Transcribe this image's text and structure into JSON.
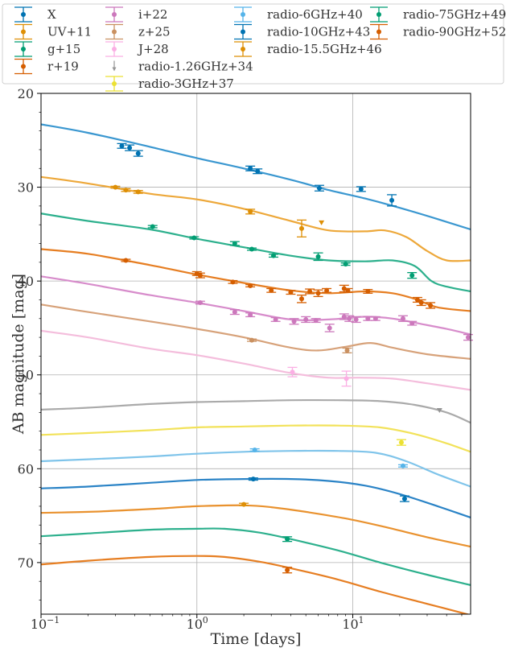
{
  "chart_data": {
    "type": "scatter",
    "xlabel": "Time [days]",
    "ylabel": "AB magnitude [mag]",
    "xscale": "log",
    "xlim": [
      0.1,
      57
    ],
    "ylim": [
      75.5,
      20
    ],
    "y_inverted": true,
    "grid": true,
    "legend_position": "top",
    "xticks": [
      {
        "v": 0.1,
        "base": "10",
        "exp": "−1"
      },
      {
        "v": 1,
        "base": "10",
        "exp": "0"
      },
      {
        "v": 10,
        "base": "10",
        "exp": "1"
      }
    ],
    "yticks": [
      20,
      30,
      40,
      50,
      60,
      70
    ],
    "series": [
      {
        "name": "X",
        "color": "#0173b2",
        "model_color": "#3a97d0",
        "upper_limit": false,
        "points": [
          [
            0.33,
            25.6,
            0.25
          ],
          [
            0.37,
            25.8,
            0.3
          ],
          [
            0.42,
            26.4,
            0.3
          ],
          [
            2.2,
            28.0,
            0.25
          ],
          [
            2.45,
            28.3,
            0.25
          ],
          [
            6.1,
            30.1,
            0.3
          ],
          [
            11.3,
            30.2,
            0.25
          ],
          [
            17.8,
            31.4,
            0.6
          ]
        ],
        "model": [
          [
            0.1,
            23.3
          ],
          [
            0.2,
            24.2
          ],
          [
            0.5,
            25.7
          ],
          [
            1,
            26.9
          ],
          [
            2,
            28.0
          ],
          [
            4,
            29.2
          ],
          [
            7,
            30.3
          ],
          [
            12,
            31.2
          ],
          [
            20,
            32.2
          ],
          [
            35,
            33.4
          ],
          [
            57,
            34.5
          ]
        ]
      },
      {
        "name": "UV+11",
        "color": "#de8f05",
        "model_color": "#eda83a",
        "upper_limit": false,
        "points": [
          [
            0.3,
            30.0,
            0.1
          ],
          [
            0.35,
            30.3,
            0.15
          ],
          [
            0.42,
            30.5,
            0.15
          ],
          [
            2.2,
            32.6,
            0.25
          ],
          [
            4.7,
            34.4,
            0.9
          ]
        ],
        "limits": [
          [
            6.3,
            33.8
          ]
        ],
        "model": [
          [
            0.1,
            28.9
          ],
          [
            0.2,
            29.6
          ],
          [
            0.5,
            30.7
          ],
          [
            1,
            31.3
          ],
          [
            2,
            32.3
          ],
          [
            4,
            33.6
          ],
          [
            7,
            34.6
          ],
          [
            12,
            34.7
          ],
          [
            16,
            34.6
          ],
          [
            22,
            35.3
          ],
          [
            30,
            36.8
          ],
          [
            40,
            37.8
          ],
          [
            57,
            37.8
          ]
        ]
      },
      {
        "name": "g+15",
        "color": "#029e73",
        "model_color": "#2db08d",
        "upper_limit": false,
        "points": [
          [
            0.52,
            34.2,
            0.12
          ],
          [
            0.96,
            35.4,
            0.12
          ],
          [
            1.75,
            36.0,
            0.2
          ],
          [
            2.25,
            36.6,
            0.12
          ],
          [
            3.1,
            37.3,
            0.15
          ],
          [
            6.0,
            37.4,
            0.4
          ],
          [
            9.0,
            38.2,
            0.12
          ],
          [
            24.0,
            39.4,
            0.3
          ]
        ],
        "model": [
          [
            0.1,
            32.8
          ],
          [
            0.2,
            33.6
          ],
          [
            0.5,
            34.5
          ],
          [
            1,
            35.5
          ],
          [
            2,
            36.4
          ],
          [
            4,
            37.3
          ],
          [
            7,
            37.8
          ],
          [
            12,
            37.9
          ],
          [
            18,
            37.8
          ],
          [
            25,
            38.4
          ],
          [
            32,
            40.0
          ],
          [
            40,
            40.6
          ],
          [
            57,
            41.1
          ]
        ]
      },
      {
        "name": "r+19",
        "color": "#d55e00",
        "model_color": "#e67e22",
        "upper_limit": false,
        "points": [
          [
            0.35,
            37.8,
            0.12
          ],
          [
            1.0,
            39.2,
            0.2
          ],
          [
            1.05,
            39.4,
            0.25
          ],
          [
            1.7,
            40.1,
            0.15
          ],
          [
            2.2,
            40.5,
            0.12
          ],
          [
            3.0,
            41.0,
            0.2
          ],
          [
            4.0,
            41.2,
            0.2
          ],
          [
            4.7,
            41.9,
            0.4
          ],
          [
            5.3,
            41.1,
            0.25
          ],
          [
            6.0,
            41.3,
            0.35
          ],
          [
            6.8,
            41.0,
            0.2
          ],
          [
            8.8,
            40.8,
            0.35
          ],
          [
            9.3,
            41.0,
            0.2
          ],
          [
            12.5,
            41.1,
            0.2
          ],
          [
            26.0,
            42.0,
            0.25
          ],
          [
            27.5,
            42.3,
            0.3
          ],
          [
            31.5,
            42.6,
            0.3
          ]
        ],
        "model": [
          [
            0.1,
            36.6
          ],
          [
            0.2,
            37.1
          ],
          [
            0.5,
            38.3
          ],
          [
            1,
            39.3
          ],
          [
            2,
            40.2
          ],
          [
            4,
            41.0
          ],
          [
            7,
            41.3
          ],
          [
            12,
            41.1
          ],
          [
            18,
            41.3
          ],
          [
            25,
            41.9
          ],
          [
            35,
            42.8
          ],
          [
            57,
            43.2
          ]
        ]
      },
      {
        "name": "i+22",
        "color": "#cc78bc",
        "model_color": "#d78ccb",
        "upper_limit": false,
        "points": [
          [
            1.05,
            42.3,
            0.15
          ],
          [
            1.75,
            43.3,
            0.25
          ],
          [
            2.2,
            43.6,
            0.2
          ],
          [
            3.2,
            44.1,
            0.2
          ],
          [
            4.2,
            44.3,
            0.3
          ],
          [
            5.0,
            44.1,
            0.3
          ],
          [
            5.8,
            44.2,
            0.2
          ],
          [
            7.1,
            45.0,
            0.4
          ],
          [
            8.8,
            43.8,
            0.3
          ],
          [
            9.5,
            44.0,
            0.3
          ],
          [
            10.5,
            44.1,
            0.3
          ],
          [
            12.5,
            44.0,
            0.2
          ],
          [
            14.0,
            44.0,
            0.2
          ],
          [
            21.0,
            44.0,
            0.3
          ],
          [
            24.0,
            44.5,
            0.2
          ],
          [
            55.0,
            46.0,
            0.3
          ]
        ],
        "model": [
          [
            0.1,
            39.5
          ],
          [
            0.2,
            40.3
          ],
          [
            0.5,
            41.5
          ],
          [
            1,
            42.3
          ],
          [
            2,
            43.2
          ],
          [
            4,
            44.1
          ],
          [
            7,
            44.1
          ],
          [
            12,
            43.8
          ],
          [
            18,
            44.0
          ],
          [
            28,
            44.6
          ],
          [
            40,
            45.1
          ],
          [
            57,
            45.7
          ]
        ]
      },
      {
        "name": "z+25",
        "color": "#ca9161",
        "model_color": "#d7a27a",
        "upper_limit": false,
        "points": [
          [
            2.25,
            46.3,
            0.12
          ],
          [
            9.2,
            47.4,
            0.25
          ]
        ],
        "model": [
          [
            0.1,
            42.5
          ],
          [
            0.2,
            43.3
          ],
          [
            0.5,
            44.3
          ],
          [
            1,
            45.1
          ],
          [
            2,
            46.0
          ],
          [
            4,
            47.1
          ],
          [
            6,
            47.4
          ],
          [
            9,
            47.0
          ],
          [
            13,
            46.6
          ],
          [
            18,
            47.1
          ],
          [
            30,
            47.8
          ],
          [
            57,
            48.3
          ]
        ]
      },
      {
        "name": "J+28",
        "color": "#fbafe4",
        "model_color": "#f4bddc",
        "upper_limit": false,
        "points": [
          [
            4.1,
            49.7,
            0.5
          ],
          [
            9.1,
            50.4,
            0.8
          ]
        ],
        "model": [
          [
            0.1,
            45.3
          ],
          [
            0.2,
            46.0
          ],
          [
            0.5,
            47.2
          ],
          [
            1,
            47.9
          ],
          [
            2,
            48.8
          ],
          [
            4,
            49.8
          ],
          [
            7,
            50.3
          ],
          [
            11,
            50.3
          ],
          [
            18,
            50.4
          ],
          [
            30,
            50.9
          ],
          [
            57,
            51.6
          ]
        ]
      },
      {
        "name": "radio-1.26GHz+34",
        "color": "#949494",
        "model_color": "#aaaaaa",
        "upper_limit": true,
        "points": [],
        "limits": [
          [
            36.0,
            53.8
          ]
        ],
        "model": [
          [
            0.1,
            53.7
          ],
          [
            0.2,
            53.5
          ],
          [
            0.5,
            53.1
          ],
          [
            1,
            52.9
          ],
          [
            2,
            52.8
          ],
          [
            4,
            52.7
          ],
          [
            8,
            52.7
          ],
          [
            15,
            52.8
          ],
          [
            25,
            53.2
          ],
          [
            40,
            54.0
          ],
          [
            57,
            55.1
          ]
        ]
      },
      {
        "name": "radio-3GHz+37",
        "color": "#ece133",
        "model_color": "#f2e25a",
        "upper_limit": false,
        "points": [
          [
            20.5,
            57.2,
            0.3
          ]
        ],
        "model": [
          [
            0.1,
            56.4
          ],
          [
            0.2,
            56.2
          ],
          [
            0.5,
            55.9
          ],
          [
            1,
            55.6
          ],
          [
            2,
            55.5
          ],
          [
            4,
            55.4
          ],
          [
            8,
            55.4
          ],
          [
            15,
            55.6
          ],
          [
            25,
            56.3
          ],
          [
            40,
            57.3
          ],
          [
            57,
            58.2
          ]
        ]
      },
      {
        "name": "radio-6GHz+40",
        "color": "#56b4e9",
        "model_color": "#7fc4ea",
        "upper_limit": false,
        "points": [
          [
            2.35,
            58.0,
            0.12
          ],
          [
            21.0,
            59.7,
            0.12
          ]
        ],
        "model": [
          [
            0.1,
            59.2
          ],
          [
            0.2,
            59.0
          ],
          [
            0.5,
            58.7
          ],
          [
            1,
            58.4
          ],
          [
            2,
            58.2
          ],
          [
            4,
            58.1
          ],
          [
            8,
            58.1
          ],
          [
            14,
            58.3
          ],
          [
            22,
            59.2
          ],
          [
            35,
            60.6
          ],
          [
            57,
            61.9
          ]
        ]
      },
      {
        "name": "radio-10GHz+43",
        "color": "#0173b2",
        "model_color": "#2a83c6",
        "upper_limit": false,
        "points": [
          [
            2.3,
            61.1,
            0.12
          ],
          [
            21.5,
            63.2,
            0.3
          ]
        ],
        "model": [
          [
            0.1,
            62.1
          ],
          [
            0.2,
            61.9
          ],
          [
            0.5,
            61.5
          ],
          [
            1,
            61.2
          ],
          [
            2,
            61.1
          ],
          [
            4,
            61.1
          ],
          [
            7,
            61.3
          ],
          [
            12,
            61.8
          ],
          [
            20,
            62.7
          ],
          [
            35,
            64.0
          ],
          [
            57,
            65.2
          ]
        ]
      },
      {
        "name": "radio-15.5GHz+46",
        "color": "#de8f05",
        "model_color": "#e9922f",
        "upper_limit": false,
        "points": [
          [
            2.0,
            63.8,
            0.12
          ]
        ],
        "model": [
          [
            0.1,
            64.7
          ],
          [
            0.2,
            64.6
          ],
          [
            0.5,
            64.3
          ],
          [
            1,
            64.0
          ],
          [
            2,
            63.9
          ],
          [
            3,
            64.1
          ],
          [
            5,
            64.6
          ],
          [
            9,
            65.3
          ],
          [
            16,
            66.2
          ],
          [
            30,
            67.3
          ],
          [
            57,
            68.3
          ]
        ]
      },
      {
        "name": "radio-75GHz+49",
        "color": "#029e73",
        "model_color": "#2db08d",
        "upper_limit": false,
        "points": [
          [
            3.8,
            67.5,
            0.25
          ]
        ],
        "model": [
          [
            0.1,
            67.2
          ],
          [
            0.2,
            66.9
          ],
          [
            0.5,
            66.5
          ],
          [
            1,
            66.4
          ],
          [
            1.5,
            66.4
          ],
          [
            2.5,
            66.8
          ],
          [
            4,
            67.5
          ],
          [
            8,
            68.7
          ],
          [
            15,
            70.0
          ],
          [
            30,
            71.3
          ],
          [
            57,
            72.4
          ]
        ]
      },
      {
        "name": "radio-90GHz+52",
        "color": "#d55e00",
        "model_color": "#e67e22",
        "upper_limit": false,
        "points": [
          [
            3.8,
            70.8,
            0.3
          ]
        ],
        "model": [
          [
            0.1,
            70.2
          ],
          [
            0.2,
            69.8
          ],
          [
            0.5,
            69.4
          ],
          [
            1,
            69.3
          ],
          [
            1.5,
            69.4
          ],
          [
            2.5,
            69.9
          ],
          [
            4,
            70.6
          ],
          [
            8,
            71.8
          ],
          [
            15,
            73.1
          ],
          [
            30,
            74.4
          ],
          [
            57,
            75.6
          ]
        ]
      }
    ]
  }
}
